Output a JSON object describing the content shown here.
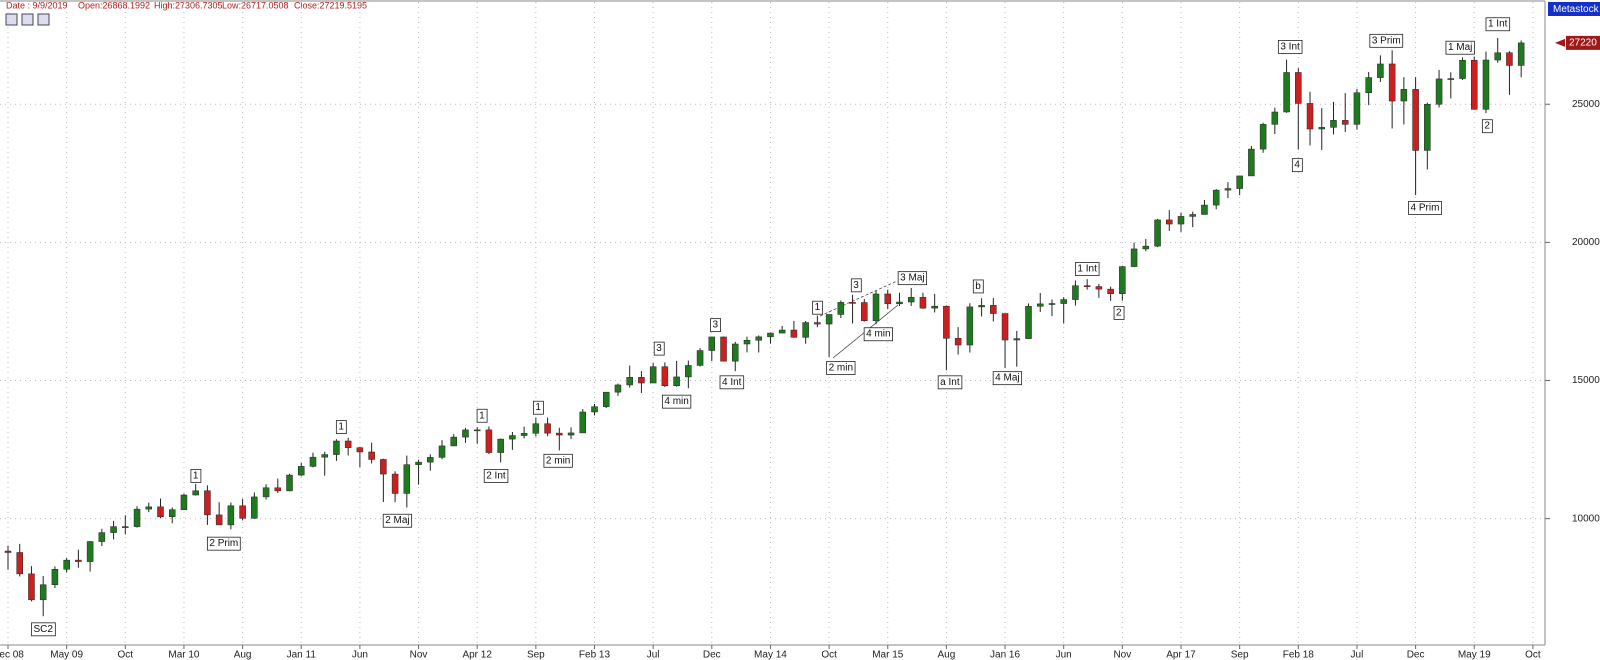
{
  "chart_data": {
    "type": "candlestick",
    "header_items": [
      "Date : 9/9/2019",
      "Open:26868.1992",
      "High:27306.7305",
      "Low:26717.0508",
      "Close:27219.5195"
    ],
    "brand": "Metastock",
    "categories": [
      "Dec 08",
      null,
      null,
      null,
      null,
      "May 09",
      null,
      null,
      null,
      null,
      "Oct",
      null,
      null,
      null,
      null,
      "Mar 10",
      null,
      null,
      null,
      null,
      "Aug",
      null,
      null,
      null,
      null,
      "Jan 11",
      null,
      null,
      null,
      null,
      "Jun",
      null,
      null,
      null,
      null,
      "Nov",
      null,
      null,
      null,
      null,
      "Apr 12",
      null,
      null,
      null,
      null,
      "Sep",
      null,
      null,
      null,
      null,
      "Feb 13",
      null,
      null,
      null,
      null,
      "Jul",
      null,
      null,
      null,
      null,
      "Dec",
      null,
      null,
      null,
      null,
      "May 14",
      null,
      null,
      null,
      null,
      "Oct",
      null,
      null,
      null,
      null,
      "Mar 15",
      null,
      null,
      null,
      null,
      "Aug",
      null,
      null,
      null,
      null,
      "Jan 16",
      null,
      null,
      null,
      null,
      "Jun",
      null,
      null,
      null,
      null,
      "Nov",
      null,
      null,
      null,
      null,
      "Apr 17",
      null,
      null,
      null,
      null,
      "Sep",
      null,
      null,
      null,
      null,
      "Feb 18",
      null,
      null,
      null,
      null,
      "Jul",
      null,
      null,
      null,
      null,
      "Dec",
      null,
      null,
      null,
      null,
      "May 19",
      null,
      null,
      null,
      null,
      "Oct"
    ],
    "open": [
      8829,
      8776,
      8001,
      7063,
      7609,
      8168,
      8500,
      8447,
      9172,
      9496,
      9712,
      9713,
      10345,
      10428,
      10067,
      10325,
      10857,
      11009,
      10137,
      9774,
      10466,
      10015,
      10788,
      11118,
      11006,
      11578,
      11892,
      12226,
      12320,
      12811,
      12570,
      12414,
      12143,
      11614,
      10913,
      11955,
      12046,
      12218,
      12633,
      12952,
      13212,
      13214,
      12393,
      12880,
      13009,
      13091,
      13437,
      13096,
      13026,
      13104,
      13861,
      14054,
      14579,
      14840,
      15116,
      14910,
      15500,
      14810,
      15130,
      15546,
      16086,
      16577,
      15699,
      16322,
      16458,
      16581,
      16717,
      16827,
      16563,
      17098,
      17043,
      17391,
      17828,
      17823,
      17165,
      18133,
      17776,
      17841,
      18011,
      17620,
      17690,
      16528,
      16285,
      17664,
      17720,
      17425,
      16466,
      16517,
      17685,
      17774,
      17787,
      17930,
      18432,
      18401,
      18308,
      18142,
      19124,
      19763,
      19864,
      20812,
      20663,
      20940,
      21009,
      21350,
      21891,
      21948,
      22405,
      23377,
      24272,
      24719,
      26149,
      25029,
      24103,
      24163,
      24416,
      24271,
      25415,
      25965,
      26458,
      25116,
      25538,
      23327,
      24999,
      25916,
      25929,
      26593,
      24815,
      26600,
      26864,
      26403,
      null
    ],
    "high": [
      9026,
      9088,
      8280,
      7924,
      8273,
      8578,
      8877,
      9188,
      9631,
      9918,
      10119,
      10450,
      10580,
      10729,
      10405,
      10908,
      11258,
      11205,
      10595,
      10586,
      10720,
      10948,
      11246,
      11452,
      11625,
      12020,
      12391,
      12419,
      12876,
      12929,
      12600,
      12753,
      12172,
      11717,
      12284,
      12130,
      12330,
      12841,
      13056,
      13289,
      13309,
      13338,
      12899,
      13137,
      13331,
      13653,
      13661,
      13290,
      13307,
      13969,
      14150,
      14585,
      14888,
      15542,
      15341,
      15634,
      15658,
      15710,
      15722,
      16175,
      16588,
      16588,
      16398,
      16588,
      16632,
      16736,
      16978,
      17152,
      17153,
      17350,
      17395,
      17894,
      18103,
      17951,
      18244,
      18289,
      18175,
      18351,
      18179,
      18137,
      17718,
      16933,
      17799,
      17978,
      17985,
      17425,
      16795,
      17791,
      18168,
      17934,
      18017,
      18622,
      18668,
      18496,
      18399,
      19152,
      19988,
      20125,
      20851,
      21169,
      21070,
      21112,
      21535,
      21929,
      22179,
      22420,
      23485,
      24328,
      24876,
      26617,
      26307,
      25450,
      24858,
      25086,
      25403,
      25552,
      26167,
      26769,
      26951,
      25980,
      25980,
      25056,
      26241,
      26155,
      26696,
      26727,
      26907,
      27399,
      26918,
      27307,
      null
    ],
    "low": [
      8149,
      7909,
      7010,
      6470,
      7491,
      8057,
      8221,
      8087,
      9008,
      9252,
      9430,
      9677,
      10235,
      10026,
      9835,
      10322,
      10834,
      9774,
      9774,
      9614,
      9937,
      9993,
      10694,
      10929,
      10993,
      11536,
      11856,
      11555,
      12093,
      12290,
      11862,
      12000,
      10605,
      10597,
      10404,
      11231,
      11735,
      12150,
      12631,
      12742,
      12710,
      12339,
      12035,
      12492,
      12905,
      12977,
      12983,
      12471,
      12883,
      13104,
      13737,
      14005,
      14444,
      14746,
      14551,
      14910,
      14760,
      14777,
      14719,
      15508,
      15704,
      15690,
      15341,
      16018,
      16015,
      16333,
      16717,
      16549,
      16333,
      16929,
      15855,
      17263,
      17068,
      17136,
      17037,
      17585,
      17699,
      17699,
      17596,
      17465,
      15370,
      15942,
      16013,
      17320,
      17138,
      15451,
      15503,
      16505,
      17484,
      17331,
      17063,
      17713,
      18289,
      17992,
      17884,
      17888,
      19107,
      19677,
      19831,
      20413,
      20379,
      20553,
      21005,
      21197,
      21600,
      21709,
      22405,
      23242,
      23922,
      24690,
      23360,
      23509,
      23344,
      23907,
      23998,
      24077,
      24965,
      25804,
      24123,
      24268,
      21713,
      22639,
      24884,
      25209,
      25880,
      24801,
      24680,
      26503,
      25339,
      25978,
      null
    ],
    "close": [
      8776,
      8001,
      7063,
      7609,
      8168,
      8500,
      8447,
      9172,
      9496,
      9712,
      9713,
      10345,
      10428,
      10067,
      10325,
      10857,
      11009,
      10137,
      9774,
      10466,
      10015,
      10788,
      11118,
      11006,
      11578,
      11892,
      12226,
      12320,
      12811,
      12570,
      12414,
      12143,
      11614,
      10913,
      11955,
      12046,
      12218,
      12633,
      12952,
      13212,
      13214,
      12393,
      12880,
      13009,
      13091,
      13437,
      13096,
      13026,
      13104,
      13861,
      14054,
      14579,
      14840,
      15116,
      14910,
      15500,
      14810,
      15130,
      15546,
      16086,
      16577,
      15699,
      16322,
      16458,
      16581,
      16717,
      16827,
      16563,
      17098,
      17043,
      17391,
      17828,
      17823,
      17165,
      18133,
      17776,
      17841,
      18011,
      17620,
      17690,
      16528,
      16285,
      17664,
      17720,
      17425,
      16466,
      16517,
      17685,
      17774,
      17787,
      17930,
      18432,
      18401,
      18308,
      18142,
      19124,
      19763,
      19864,
      20812,
      20663,
      20940,
      21009,
      21350,
      21891,
      21948,
      22405,
      23377,
      24272,
      24719,
      26149,
      25029,
      24103,
      24163,
      24416,
      24271,
      25415,
      25965,
      26458,
      25116,
      25538,
      23327,
      24999,
      25916,
      25929,
      26593,
      24815,
      26600,
      26864,
      26403,
      27220,
      null
    ],
    "up_color": "#1f7a1f",
    "down_color": "#cc2020",
    "ylim": [
      5500,
      28700
    ],
    "yticks": [
      10000,
      15000,
      20000,
      25000
    ],
    "grid": true,
    "last_price": 27220,
    "annotations": [
      {
        "text": "SC2",
        "x": 3,
        "y": 6000
      },
      {
        "text": "1",
        "x": 16,
        "y": 11550
      },
      {
        "text": "2 Prim",
        "x": 18.4,
        "y": 9100
      },
      {
        "text": "1",
        "x": 28.4,
        "y": 13320
      },
      {
        "text": "2 Maj",
        "x": 33.2,
        "y": 9930
      },
      {
        "text": "1",
        "x": 40.4,
        "y": 13730
      },
      {
        "text": "2 Int",
        "x": 41.6,
        "y": 11550
      },
      {
        "text": "1",
        "x": 45.2,
        "y": 14020
      },
      {
        "text": "2 min",
        "x": 46.9,
        "y": 12100
      },
      {
        "text": "3",
        "x": 55.5,
        "y": 16160
      },
      {
        "text": "4 min",
        "x": 57,
        "y": 14240
      },
      {
        "text": "3",
        "x": 60.3,
        "y": 17010
      },
      {
        "text": "4 Int",
        "x": 61.7,
        "y": 14940
      },
      {
        "text": "1",
        "x": 69,
        "y": 17640
      },
      {
        "text": "2 min",
        "x": 71,
        "y": 15460
      },
      {
        "text": "3",
        "x": 72.3,
        "y": 18450
      },
      {
        "text": "4 min",
        "x": 74.2,
        "y": 16680
      },
      {
        "text": "3 Maj",
        "x": 77.1,
        "y": 18710
      },
      {
        "text": "a Int",
        "x": 80.3,
        "y": 14940
      },
      {
        "text": "b",
        "x": 82.7,
        "y": 18410
      },
      {
        "text": "4 Maj",
        "x": 85.2,
        "y": 15090
      },
      {
        "text": "1 Int",
        "x": 92,
        "y": 19040
      },
      {
        "text": "2",
        "x": 94.7,
        "y": 17450
      },
      {
        "text": "3 Int",
        "x": 109.3,
        "y": 27080
      },
      {
        "text": "4",
        "x": 109.9,
        "y": 22800
      },
      {
        "text": "3 Prim",
        "x": 117.5,
        "y": 27300
      },
      {
        "text": "4 Prim",
        "x": 120.8,
        "y": 21250
      },
      {
        "text": "1 Maj",
        "x": 123.8,
        "y": 27050
      },
      {
        "text": "2",
        "x": 126.1,
        "y": 24210
      },
      {
        "text": "1 Int",
        "x": 127,
        "y": 27900
      }
    ]
  }
}
